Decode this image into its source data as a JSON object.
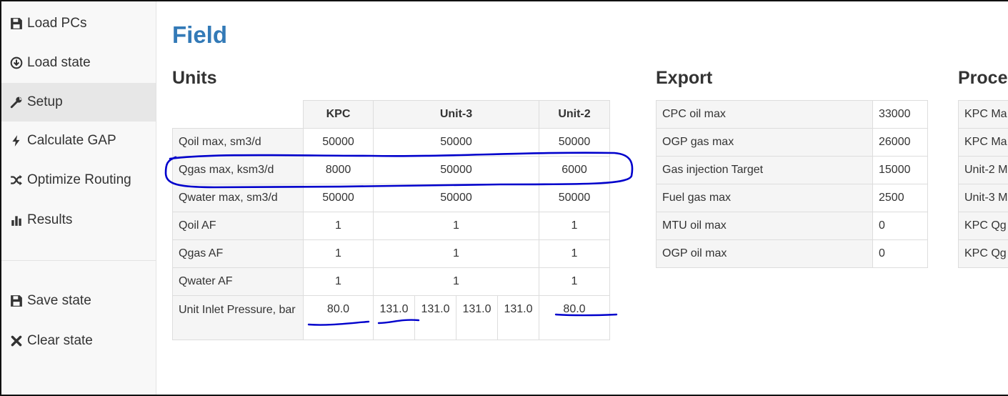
{
  "sidebar": {
    "items": [
      {
        "label": "Load PCs",
        "icon": "save-icon"
      },
      {
        "label": "Load state",
        "icon": "download-circle-icon"
      },
      {
        "label": "Setup",
        "icon": "wrench-icon",
        "active": true
      },
      {
        "label": "Calculate GAP",
        "icon": "lightning-icon"
      },
      {
        "label": "Optimize Routing",
        "icon": "shuffle-icon"
      },
      {
        "label": "Results",
        "icon": "bar-chart-icon"
      },
      {
        "label": "Save state",
        "icon": "save-icon"
      },
      {
        "label": "Clear state",
        "icon": "close-icon"
      }
    ]
  },
  "page": {
    "title": "Field"
  },
  "units": {
    "title": "Units",
    "columns": [
      "KPC",
      "Unit-3",
      "Unit-2"
    ],
    "rows": [
      {
        "label": "Qoil max, sm3/d",
        "values": [
          "50000",
          "50000",
          "50000"
        ]
      },
      {
        "label": "Qgas max, ksm3/d",
        "values": [
          "8000",
          "50000",
          "6000"
        ]
      },
      {
        "label": "Qwater max, sm3/d",
        "values": [
          "50000",
          "50000",
          "50000"
        ]
      },
      {
        "label": "Qoil AF",
        "values": [
          "1",
          "1",
          "1"
        ]
      },
      {
        "label": "Qgas AF",
        "values": [
          "1",
          "1",
          "1"
        ]
      },
      {
        "label": "Qwater AF",
        "values": [
          "1",
          "1",
          "1"
        ]
      }
    ],
    "pressure": {
      "label": "Unit Inlet Pressure, bar",
      "kpc": "80.0",
      "unit3": [
        "131.0",
        "131.0",
        "131.0",
        "131.0"
      ],
      "unit2": "80.0"
    }
  },
  "export": {
    "title": "Export",
    "rows": [
      {
        "label": "CPC oil max",
        "value": "33000"
      },
      {
        "label": "OGP gas max",
        "value": "26000"
      },
      {
        "label": "Gas injection Target",
        "value": "15000"
      },
      {
        "label": "Fuel gas max",
        "value": "2500"
      },
      {
        "label": "MTU oil max",
        "value": "0"
      },
      {
        "label": "OGP oil max",
        "value": "0"
      }
    ]
  },
  "process": {
    "title": "Proce",
    "rows": [
      "KPC Ma",
      "KPC Ma",
      "Unit-2 M",
      "Unit-3 M",
      "KPC Qg",
      "KPC Qg"
    ]
  },
  "colors": {
    "accent": "#337ab7",
    "annotation": "#0000cc",
    "active_nav": "#e7e7e7"
  }
}
